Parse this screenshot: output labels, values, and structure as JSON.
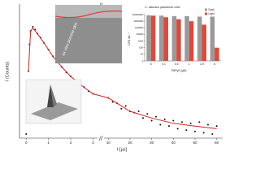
{
  "chart_data": [
    {
      "type": "scatter",
      "xlabel": "t [µs]",
      "ylabel": "I (Counts)",
      "annotation": "ex vivo porcine skin",
      "xlim": [
        [
          -0.3,
          3.2
        ],
        [
          8,
          62
        ]
      ],
      "xticks": [
        0,
        1,
        2,
        3,
        10,
        20,
        30,
        40,
        50,
        60
      ],
      "ylim": [
        0,
        1
      ],
      "points": {
        "color": "#111111",
        "x": [
          0,
          0.05,
          0.1,
          0.15,
          0.2,
          0.3,
          0.4,
          0.5,
          0.65,
          0.8,
          1,
          1.2,
          1.4,
          1.6,
          1.8,
          2,
          2.2,
          2.4,
          2.6,
          2.8,
          3,
          10,
          12,
          14,
          16,
          18,
          20,
          22,
          24,
          26,
          28,
          30,
          32,
          34,
          36,
          38,
          40,
          42,
          44,
          46,
          48,
          50,
          52,
          54,
          56,
          58,
          60
        ],
        "values": [
          0.03,
          0.2,
          0.5,
          0.7,
          0.8,
          0.83,
          0.81,
          0.78,
          0.75,
          0.71,
          0.66,
          0.61,
          0.57,
          0.53,
          0.49,
          0.46,
          0.43,
          0.4,
          0.38,
          0.35,
          0.33,
          0.3,
          0.27,
          0.26,
          0.22,
          0.24,
          0.2,
          0.19,
          0.2,
          0.15,
          0.18,
          0.13,
          0.16,
          0.1,
          0.14,
          0.09,
          0.13,
          0.07,
          0.12,
          0.06,
          0.11,
          0.05,
          0.12,
          0.04,
          0.1,
          0.03,
          0.09
        ]
      },
      "fit": {
        "color": "#d62020",
        "x": [
          0.1,
          0.2,
          0.3,
          0.5,
          0.8,
          1.2,
          1.6,
          2,
          2.5,
          3,
          10,
          20,
          30,
          40,
          50,
          60
        ],
        "values": [
          0.5,
          0.8,
          0.82,
          0.78,
          0.71,
          0.61,
          0.53,
          0.46,
          0.39,
          0.33,
          0.3,
          0.2,
          0.15,
          0.11,
          0.09,
          0.07
        ]
      }
    },
    {
      "type": "bar",
      "title": "C. albicans planktonic cells",
      "ylabel": "CFU mL⁻¹",
      "xlabel": "TMPyP (µM)",
      "log_scale": true,
      "ylim": [
        1,
        10000000
      ],
      "yticks": [
        1,
        10,
        100,
        1000,
        10000,
        100000,
        1000000,
        10000000
      ],
      "categories": [
        "0",
        "0.1",
        "0.5",
        "1",
        "2.5",
        "5"
      ],
      "series": [
        {
          "name": "Dark",
          "color": "#9a9a9a",
          "values": [
            8000000,
            7000000,
            6000000,
            6000000,
            5000000,
            5000000
          ]
        },
        {
          "name": "Light",
          "color": "#e0483a",
          "values": [
            7000000,
            4000000,
            2000000,
            1000000,
            300000,
            100
          ]
        }
      ]
    }
  ]
}
